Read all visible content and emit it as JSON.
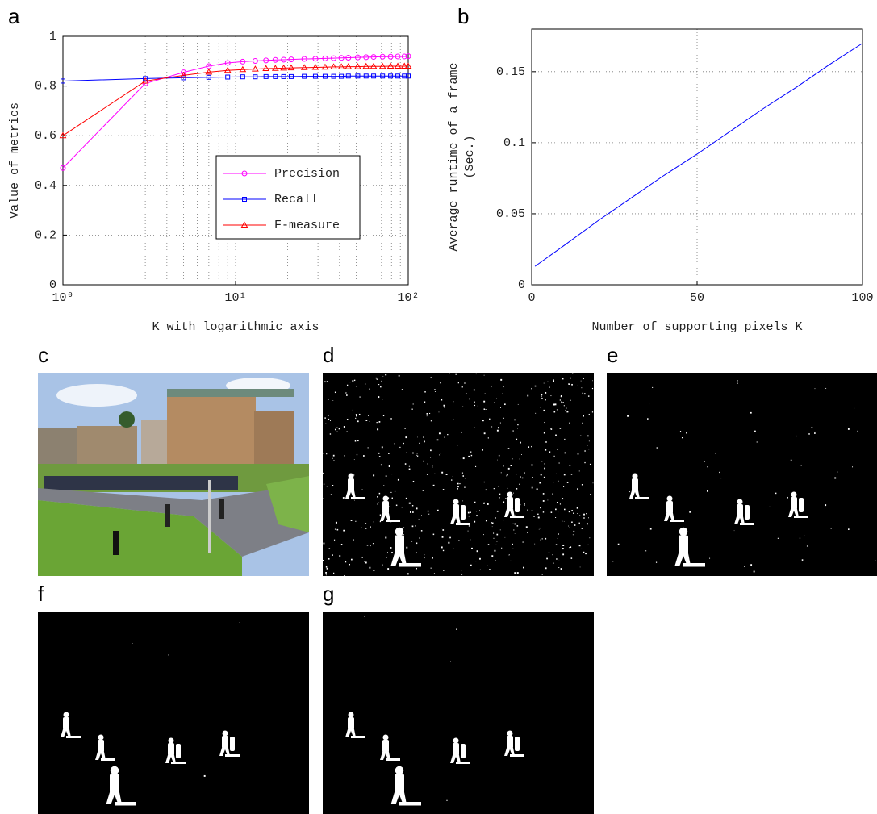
{
  "chart_data": [
    {
      "type": "line",
      "panel": "a",
      "xlabel": "K with logarithmic axis",
      "ylabel": "Value of metrics",
      "xscale": "log",
      "xlim": [
        1,
        100
      ],
      "xticks": [
        {
          "value": 1,
          "label": "10⁰"
        },
        {
          "value": 10,
          "label": "10¹"
        },
        {
          "value": 100,
          "label": "10²"
        }
      ],
      "ylim": [
        0,
        1
      ],
      "yticks": [
        0,
        0.2,
        0.4,
        0.6,
        0.8,
        1
      ],
      "grid": true,
      "minor_grid": true,
      "legend": "center right",
      "x": [
        1,
        3,
        5,
        7,
        9,
        11,
        13,
        15,
        17,
        19,
        21,
        25,
        29,
        33,
        37,
        41,
        45,
        51,
        57,
        63,
        71,
        79,
        87,
        95,
        100
      ],
      "series": [
        {
          "name": "Precision",
          "color": "#ff00ff",
          "marker": "circle",
          "values": [
            0.47,
            0.81,
            0.855,
            0.88,
            0.893,
            0.898,
            0.901,
            0.903,
            0.905,
            0.906,
            0.907,
            0.909,
            0.91,
            0.911,
            0.912,
            0.913,
            0.914,
            0.915,
            0.916,
            0.917,
            0.918,
            0.918,
            0.919,
            0.919,
            0.92
          ]
        },
        {
          "name": "Recall",
          "color": "#0000ff",
          "marker": "square",
          "values": [
            0.82,
            0.83,
            0.833,
            0.835,
            0.836,
            0.837,
            0.837,
            0.838,
            0.838,
            0.838,
            0.838,
            0.839,
            0.839,
            0.839,
            0.839,
            0.839,
            0.84,
            0.84,
            0.84,
            0.84,
            0.84,
            0.84,
            0.84,
            0.84,
            0.84
          ]
        },
        {
          "name": "F-measure",
          "color": "#ff0000",
          "marker": "triangle",
          "values": [
            0.6,
            0.82,
            0.843,
            0.856,
            0.863,
            0.866,
            0.868,
            0.87,
            0.871,
            0.872,
            0.873,
            0.874,
            0.875,
            0.876,
            0.877,
            0.877,
            0.878,
            0.878,
            0.879,
            0.879,
            0.879,
            0.88,
            0.88,
            0.88,
            0.88
          ]
        }
      ]
    },
    {
      "type": "line",
      "panel": "b",
      "xlabel": "Number of supporting pixels K",
      "ylabel": [
        "Average runtime of a frame",
        "(Sec.)"
      ],
      "xlim": [
        0,
        100
      ],
      "xticks": [
        0,
        50,
        100
      ],
      "ylim": [
        0,
        0.18
      ],
      "yticks": [
        0,
        0.05,
        0.1,
        0.15
      ],
      "grid": true,
      "x": [
        1,
        10,
        20,
        30,
        40,
        50,
        60,
        70,
        80,
        90,
        100
      ],
      "series": [
        {
          "color": "#0000ff",
          "values": [
            0.013,
            0.028,
            0.045,
            0.061,
            0.077,
            0.092,
            0.108,
            0.124,
            0.139,
            0.155,
            0.17
          ]
        }
      ]
    }
  ],
  "images": [
    {
      "label": "c"
    },
    {
      "label": "d"
    },
    {
      "label": "e"
    },
    {
      "label": "f"
    },
    {
      "label": "g"
    }
  ]
}
